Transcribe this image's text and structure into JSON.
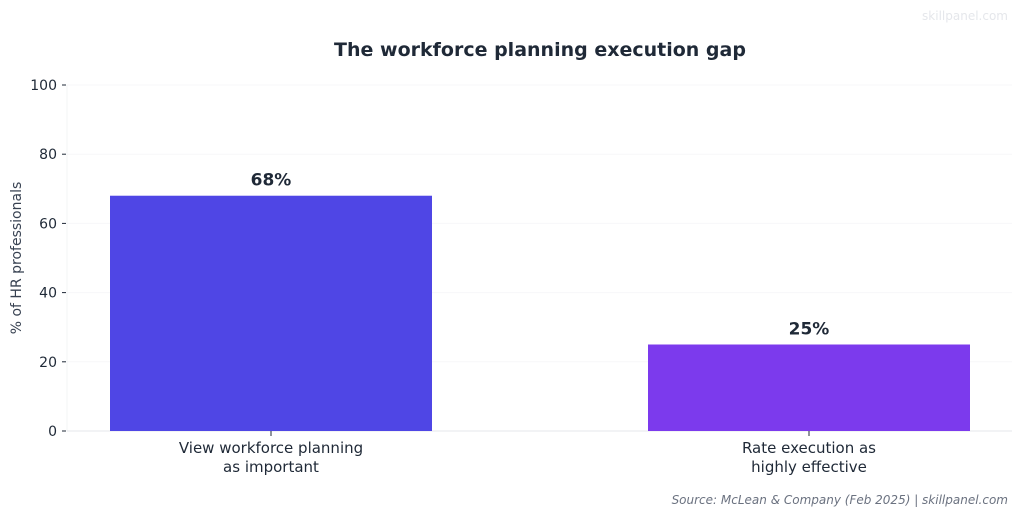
{
  "watermark": "skillpanel.com",
  "source": "Source: McLean & Company (Feb 2025) | skillpanel.com",
  "chart_data": {
    "type": "bar",
    "title": "The workforce planning execution gap",
    "xlabel": "",
    "ylabel": "% of HR professionals",
    "ylim": [
      0,
      100
    ],
    "yticks": [
      0,
      20,
      40,
      60,
      80,
      100
    ],
    "grid": true,
    "categories": [
      [
        "View workforce planning",
        "as important"
      ],
      [
        "Rate execution as",
        "highly effective"
      ]
    ],
    "values": [
      68,
      25
    ],
    "data_labels": [
      "68%",
      "25%"
    ],
    "colors": [
      "#4f46e5",
      "#7c3aed"
    ]
  }
}
